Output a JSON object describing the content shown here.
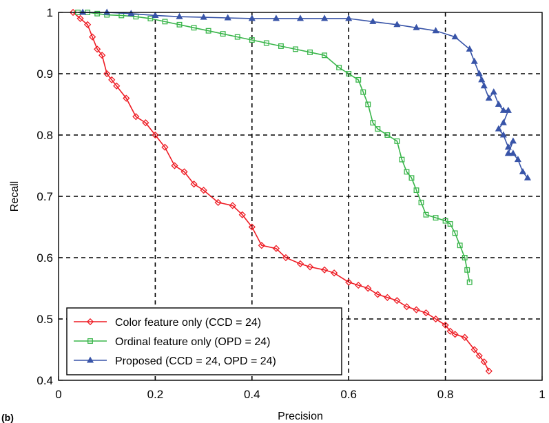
{
  "chart_data": {
    "type": "line",
    "title": "",
    "panel_label": "(b)",
    "xlabel": "Precision",
    "ylabel": "Recall",
    "xlim": [
      0,
      1
    ],
    "ylim": [
      0.4,
      1
    ],
    "xticks": [
      0,
      0.2,
      0.4,
      0.6,
      0.8,
      1
    ],
    "yticks": [
      0.4,
      0.5,
      0.6,
      0.7,
      0.8,
      0.9,
      1
    ],
    "xtick_labels": [
      "0",
      "0.2",
      "0.4",
      "0.6",
      "0.8",
      "1"
    ],
    "ytick_labels": [
      "0.4",
      "0.5",
      "0.6",
      "0.7",
      "0.8",
      "0.9",
      "1"
    ],
    "grid": true,
    "legend_position": "bottom-left",
    "series": [
      {
        "name": "Color feature only (CCD = 24)",
        "color": "#ee1c24",
        "marker": "diamond",
        "x": [
          0.03,
          0.045,
          0.06,
          0.07,
          0.08,
          0.09,
          0.1,
          0.11,
          0.12,
          0.14,
          0.16,
          0.18,
          0.2,
          0.22,
          0.24,
          0.26,
          0.28,
          0.3,
          0.33,
          0.36,
          0.38,
          0.4,
          0.42,
          0.45,
          0.47,
          0.5,
          0.52,
          0.55,
          0.57,
          0.6,
          0.62,
          0.64,
          0.66,
          0.68,
          0.7,
          0.72,
          0.74,
          0.76,
          0.78,
          0.8,
          0.81,
          0.82,
          0.84,
          0.86,
          0.87,
          0.88,
          0.89
        ],
        "y": [
          1.0,
          0.99,
          0.98,
          0.96,
          0.94,
          0.93,
          0.9,
          0.89,
          0.88,
          0.86,
          0.83,
          0.82,
          0.8,
          0.78,
          0.75,
          0.74,
          0.72,
          0.71,
          0.69,
          0.685,
          0.67,
          0.65,
          0.62,
          0.615,
          0.6,
          0.59,
          0.585,
          0.58,
          0.575,
          0.56,
          0.555,
          0.55,
          0.54,
          0.535,
          0.53,
          0.52,
          0.515,
          0.51,
          0.5,
          0.49,
          0.48,
          0.475,
          0.47,
          0.45,
          0.44,
          0.43,
          0.415
        ]
      },
      {
        "name": "Ordinal feature only (OPD = 24)",
        "color": "#39b54a",
        "marker": "square",
        "x": [
          0.04,
          0.06,
          0.08,
          0.1,
          0.13,
          0.16,
          0.19,
          0.22,
          0.25,
          0.28,
          0.31,
          0.34,
          0.37,
          0.4,
          0.43,
          0.46,
          0.49,
          0.52,
          0.55,
          0.58,
          0.6,
          0.62,
          0.63,
          0.64,
          0.65,
          0.66,
          0.68,
          0.7,
          0.71,
          0.72,
          0.73,
          0.74,
          0.75,
          0.76,
          0.78,
          0.8,
          0.81,
          0.82,
          0.83,
          0.84,
          0.845,
          0.85
        ],
        "y": [
          1.0,
          1.0,
          0.998,
          0.996,
          0.995,
          0.993,
          0.99,
          0.985,
          0.98,
          0.975,
          0.97,
          0.965,
          0.96,
          0.955,
          0.95,
          0.945,
          0.94,
          0.935,
          0.93,
          0.91,
          0.9,
          0.89,
          0.87,
          0.85,
          0.82,
          0.81,
          0.8,
          0.79,
          0.76,
          0.74,
          0.73,
          0.71,
          0.69,
          0.67,
          0.665,
          0.66,
          0.655,
          0.64,
          0.62,
          0.6,
          0.58,
          0.56
        ]
      },
      {
        "name": "Proposed (CCD = 24, OPD = 24)",
        "color": "#3854a8",
        "marker": "triangle",
        "x": [
          0.05,
          0.1,
          0.15,
          0.2,
          0.25,
          0.3,
          0.35,
          0.4,
          0.45,
          0.5,
          0.55,
          0.6,
          0.65,
          0.7,
          0.74,
          0.78,
          0.82,
          0.85,
          0.86,
          0.87,
          0.875,
          0.88,
          0.89,
          0.9,
          0.91,
          0.92,
          0.93,
          0.92,
          0.91,
          0.92,
          0.93,
          0.94,
          0.93,
          0.94,
          0.95,
          0.96,
          0.97
        ],
        "y": [
          1.0,
          1.0,
          0.998,
          0.995,
          0.993,
          0.992,
          0.991,
          0.99,
          0.99,
          0.99,
          0.99,
          0.99,
          0.985,
          0.98,
          0.975,
          0.97,
          0.96,
          0.94,
          0.92,
          0.9,
          0.89,
          0.88,
          0.86,
          0.87,
          0.85,
          0.84,
          0.84,
          0.82,
          0.81,
          0.8,
          0.78,
          0.79,
          0.77,
          0.77,
          0.76,
          0.74,
          0.73
        ]
      }
    ]
  }
}
